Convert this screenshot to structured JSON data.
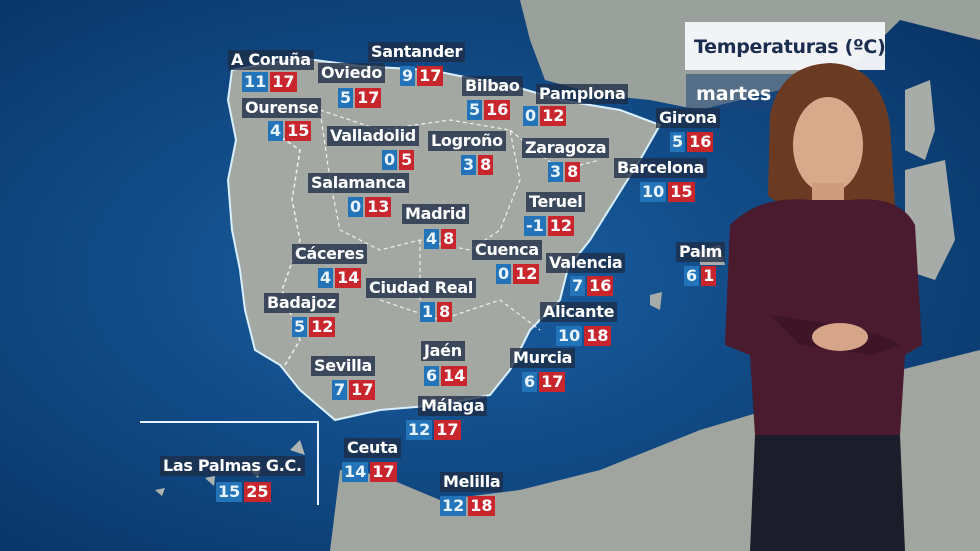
{
  "header": {
    "title": "Temperaturas (ºC)",
    "day": "martes"
  },
  "colors": {
    "min_box": "#2273b8",
    "max_box": "#c8262c",
    "label_box": "#1e2d46",
    "sea": "#0b4a8a",
    "land": "#9ea39f",
    "sweater": "#4a1a2e"
  },
  "cities": [
    {
      "name": "A Coruña",
      "min": "11",
      "max": "17"
    },
    {
      "name": "Santander",
      "min": "9",
      "max": "17"
    },
    {
      "name": "Oviedo",
      "min": "5",
      "max": "17"
    },
    {
      "name": "Bilbao",
      "min": "5",
      "max": "16"
    },
    {
      "name": "Pamplona",
      "min": "0",
      "max": "12"
    },
    {
      "name": "Ourense",
      "min": "4",
      "max": "15"
    },
    {
      "name": "Valladolid",
      "min": "0",
      "max": "5"
    },
    {
      "name": "Logroño",
      "min": "3",
      "max": "8"
    },
    {
      "name": "Zaragoza",
      "min": "3",
      "max": "8"
    },
    {
      "name": "Girona",
      "min": "5",
      "max": "16"
    },
    {
      "name": "Barcelona",
      "min": "10",
      "max": "15"
    },
    {
      "name": "Salamanca",
      "min": "0",
      "max": "13"
    },
    {
      "name": "Madrid",
      "min": "4",
      "max": "8"
    },
    {
      "name": "Teruel",
      "min": "-1",
      "max": "12"
    },
    {
      "name": "Cuenca",
      "min": "0",
      "max": "12"
    },
    {
      "name": "Valencia",
      "min": "7",
      "max": "16"
    },
    {
      "name": "Palm",
      "min": "6",
      "max": "1"
    },
    {
      "name": "Cáceres",
      "min": "4",
      "max": "14"
    },
    {
      "name": "Ciudad Real",
      "min": "1",
      "max": "8"
    },
    {
      "name": "Badajoz",
      "min": "5",
      "max": "12"
    },
    {
      "name": "Alicante",
      "min": "10",
      "max": "18"
    },
    {
      "name": "Sevilla",
      "min": "7",
      "max": "17"
    },
    {
      "name": "Jaén",
      "min": "6",
      "max": "14"
    },
    {
      "name": "Murcia",
      "min": "6",
      "max": "17"
    },
    {
      "name": "Málaga",
      "min": "12",
      "max": "17"
    },
    {
      "name": "Ceuta",
      "min": "14",
      "max": "17"
    },
    {
      "name": "Melilla",
      "min": "12",
      "max": "18"
    },
    {
      "name": "Las Palmas G.C.",
      "min": "15",
      "max": "25"
    }
  ]
}
